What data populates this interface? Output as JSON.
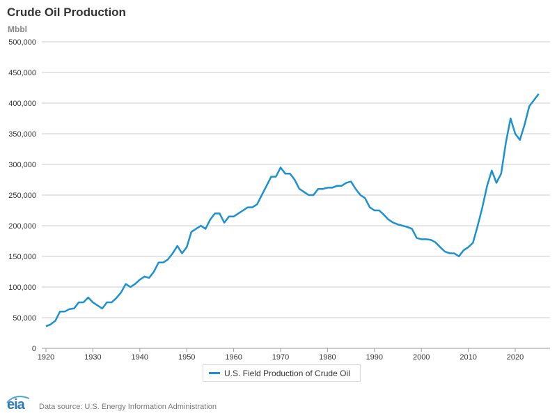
{
  "header": {
    "title": "Crude Oil Production",
    "unit": "Mbbl"
  },
  "footer": {
    "logo_text": "eia",
    "source": "Data source: U.S. Energy Information Administration"
  },
  "chart_data": {
    "type": "line",
    "title": "Crude Oil Production",
    "ylabel": "Mbbl",
    "xlabel": "",
    "xlim": [
      1920,
      2026
    ],
    "ylim": [
      0,
      500000
    ],
    "x_ticks": [
      "1920",
      "1930",
      "1940",
      "1950",
      "1960",
      "1970",
      "1980",
      "1990",
      "2000",
      "2010",
      "2020"
    ],
    "y_ticks": [
      "0",
      "50,000",
      "100,000",
      "150,000",
      "200,000",
      "250,000",
      "300,000",
      "350,000",
      "400,000",
      "450,000",
      "500,000"
    ],
    "grid": true,
    "legend_position": "bottom-center",
    "series": [
      {
        "name": "U.S. Field Production of Crude Oil",
        "color": "#1b91d1",
        "x": [
          1920,
          1921,
          1922,
          1923,
          1924,
          1925,
          1926,
          1927,
          1928,
          1929,
          1930,
          1931,
          1932,
          1933,
          1934,
          1935,
          1936,
          1937,
          1938,
          1939,
          1940,
          1941,
          1942,
          1943,
          1944,
          1945,
          1946,
          1947,
          1948,
          1949,
          1950,
          1951,
          1952,
          1953,
          1954,
          1955,
          1956,
          1957,
          1958,
          1959,
          1960,
          1961,
          1962,
          1963,
          1964,
          1965,
          1966,
          1967,
          1968,
          1969,
          1970,
          1971,
          1972,
          1973,
          1974,
          1975,
          1976,
          1977,
          1978,
          1979,
          1980,
          1981,
          1982,
          1983,
          1984,
          1985,
          1986,
          1987,
          1988,
          1989,
          1990,
          1991,
          1992,
          1993,
          1994,
          1995,
          1996,
          1997,
          1998,
          1999,
          2000,
          2001,
          2002,
          2003,
          2004,
          2005,
          2006,
          2007,
          2008,
          2009,
          2010,
          2011,
          2012,
          2013,
          2014,
          2015,
          2016,
          2017,
          2018,
          2019,
          2020,
          2021,
          2022,
          2023,
          2024,
          2025
        ],
        "values": [
          36000,
          39000,
          45000,
          60000,
          60000,
          64000,
          65000,
          75000,
          75000,
          83000,
          75000,
          70000,
          65000,
          75000,
          75000,
          82000,
          91000,
          105000,
          100000,
          105000,
          112000,
          117000,
          115000,
          125000,
          140000,
          140000,
          145000,
          155000,
          167000,
          155000,
          165000,
          190000,
          195000,
          200000,
          195000,
          210000,
          220000,
          220000,
          205000,
          215000,
          215000,
          220000,
          225000,
          230000,
          230000,
          235000,
          250000,
          265000,
          280000,
          280000,
          295000,
          285000,
          285000,
          275000,
          260000,
          255000,
          250000,
          250000,
          260000,
          260000,
          262000,
          262000,
          265000,
          265000,
          270000,
          272000,
          260000,
          250000,
          245000,
          230000,
          225000,
          225000,
          218000,
          210000,
          205000,
          202000,
          200000,
          198000,
          195000,
          180000,
          178000,
          178000,
          177000,
          173000,
          165000,
          158000,
          155000,
          155000,
          150000,
          160000,
          165000,
          172000,
          200000,
          230000,
          265000,
          290000,
          270000,
          285000,
          335000,
          375000,
          350000,
          340000,
          365000,
          395000,
          405000,
          415000
        ]
      }
    ]
  }
}
